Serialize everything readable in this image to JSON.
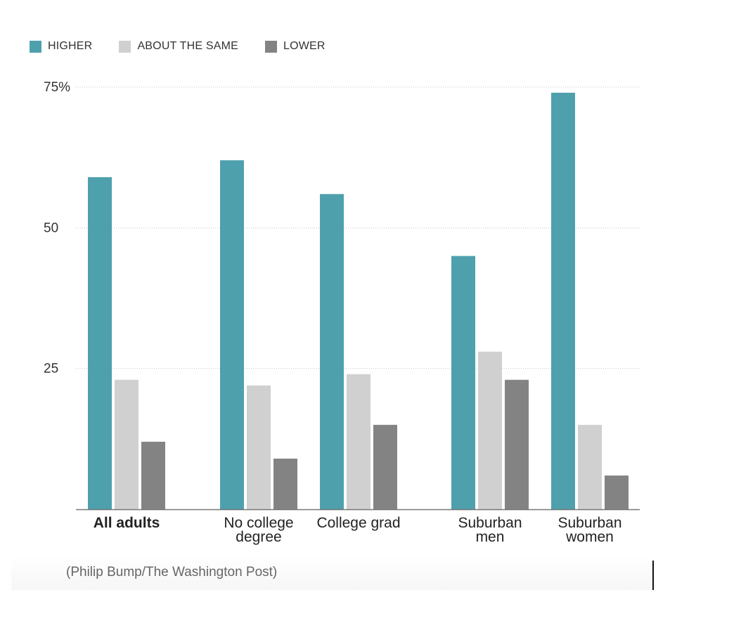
{
  "chart_data": {
    "type": "bar",
    "categories": [
      "All adults",
      "No college degree",
      "College grad",
      "Suburban men",
      "Suburban women"
    ],
    "category_lines": [
      [
        "All adults"
      ],
      [
        "No college",
        "degree"
      ],
      [
        "College grad"
      ],
      [
        "Suburban",
        "men"
      ],
      [
        "Suburban",
        "women"
      ]
    ],
    "emphasized_category": "All adults",
    "series": [
      {
        "name": "HIGHER",
        "color": "#4ea0ad",
        "values": [
          59,
          62,
          56,
          45,
          74
        ]
      },
      {
        "name": "ABOUT THE SAME",
        "color": "#d0d0d0",
        "values": [
          23,
          22,
          24,
          28,
          15
        ]
      },
      {
        "name": "LOWER",
        "color": "#838383",
        "values": [
          12,
          9,
          15,
          23,
          6
        ]
      }
    ],
    "ylim": [
      0,
      75
    ],
    "yticks": [
      {
        "value": 75,
        "label": "75%"
      },
      {
        "value": 50,
        "label": "50"
      },
      {
        "value": 25,
        "label": "25"
      }
    ],
    "grid": true,
    "legend_position": "top-left",
    "xlabel": "",
    "ylabel": ""
  },
  "credit": "(Philip Bump/The Washington Post)"
}
